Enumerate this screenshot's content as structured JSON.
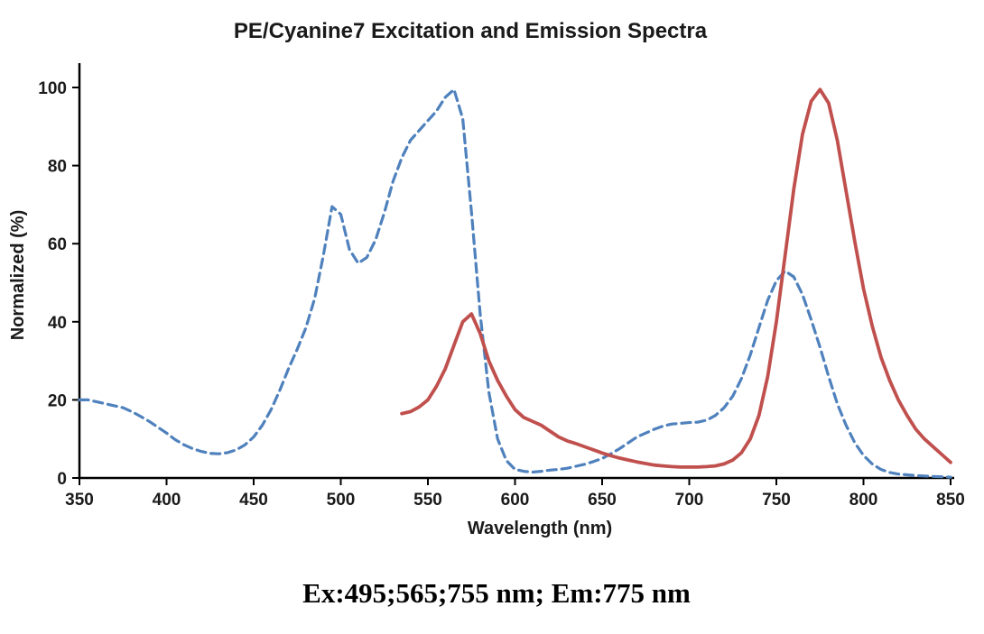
{
  "chart_data": {
    "type": "line",
    "title": "PE/Cyanine7 Excitation and Emission Spectra",
    "xlabel": "Wavelength (nm)",
    "ylabel": "Normalized (%)",
    "annotation": "Ex:495;565;755 nm; Em:775 nm",
    "xlim": [
      350,
      850
    ],
    "ylim": [
      0,
      100
    ],
    "x_ticks": [
      350,
      400,
      450,
      500,
      550,
      600,
      650,
      700,
      750,
      800,
      850
    ],
    "y_ticks": [
      0,
      20,
      40,
      60,
      80,
      100
    ],
    "grid": false,
    "legend": "none",
    "axis_color": "#000000",
    "series": [
      {
        "name": "Excitation",
        "style": "dashed",
        "color": "#4f81bd",
        "x": [
          350,
          355,
          360,
          365,
          370,
          375,
          380,
          385,
          390,
          395,
          400,
          405,
          410,
          415,
          420,
          425,
          430,
          435,
          440,
          445,
          450,
          455,
          460,
          465,
          470,
          475,
          480,
          485,
          490,
          495,
          500,
          505,
          510,
          515,
          520,
          525,
          530,
          535,
          540,
          545,
          550,
          555,
          560,
          565,
          570,
          575,
          580,
          585,
          590,
          595,
          600,
          605,
          610,
          615,
          620,
          625,
          630,
          635,
          640,
          645,
          650,
          655,
          660,
          665,
          670,
          675,
          680,
          685,
          690,
          695,
          700,
          705,
          710,
          715,
          720,
          725,
          730,
          735,
          740,
          745,
          750,
          755,
          760,
          765,
          770,
          775,
          780,
          785,
          790,
          795,
          800,
          805,
          810,
          815,
          820,
          825,
          830,
          835,
          840,
          845,
          850
        ],
        "y": [
          20,
          20,
          19.5,
          19,
          18.5,
          18,
          17,
          15.8,
          14.5,
          13,
          11.5,
          9.8,
          8.5,
          7.5,
          6.8,
          6.3,
          6.2,
          6.5,
          7.2,
          8.5,
          10.5,
          13.5,
          17.5,
          22.5,
          28,
          33,
          38.5,
          46,
          57,
          69.5,
          67.5,
          58.5,
          55,
          56.5,
          61,
          68,
          76,
          82,
          86.5,
          89,
          91.5,
          94,
          97.5,
          99.5,
          92,
          68,
          42,
          22,
          10,
          4.5,
          2.2,
          1.7,
          1.5,
          1.7,
          2,
          2.2,
          2.5,
          3,
          3.5,
          4.2,
          5,
          6.2,
          7.5,
          9,
          10.5,
          11.5,
          12.5,
          13.3,
          13.8,
          14,
          14.2,
          14.3,
          14.8,
          16,
          18,
          21,
          25.5,
          31.5,
          38.5,
          45.5,
          50.5,
          53,
          51.5,
          47,
          40.5,
          33.5,
          26,
          19,
          13.5,
          9,
          5.8,
          3.6,
          2.2,
          1.4,
          1,
          0.8,
          0.6,
          0.5,
          0.4,
          0.3,
          0.2
        ]
      },
      {
        "name": "Emission",
        "style": "solid",
        "color": "#c0504d",
        "x": [
          535,
          540,
          545,
          550,
          555,
          560,
          565,
          570,
          575,
          580,
          585,
          590,
          595,
          600,
          605,
          610,
          615,
          620,
          625,
          630,
          635,
          640,
          645,
          650,
          655,
          660,
          665,
          670,
          675,
          680,
          685,
          690,
          695,
          700,
          705,
          710,
          715,
          720,
          725,
          730,
          735,
          740,
          745,
          750,
          755,
          760,
          765,
          770,
          775,
          780,
          785,
          790,
          795,
          800,
          805,
          810,
          815,
          820,
          825,
          830,
          835,
          840,
          845,
          850
        ],
        "y": [
          16.5,
          17,
          18.2,
          20,
          23.5,
          28,
          34,
          40,
          42,
          37,
          30,
          25,
          21,
          17.5,
          15.5,
          14.5,
          13.5,
          12,
          10.5,
          9.5,
          8.8,
          8,
          7.2,
          6.4,
          5.7,
          5.1,
          4.6,
          4.1,
          3.7,
          3.3,
          3.1,
          2.9,
          2.8,
          2.8,
          2.8,
          2.9,
          3.1,
          3.6,
          4.6,
          6.5,
          10,
          16,
          26,
          40,
          57,
          74,
          88,
          96.5,
          99.5,
          96,
          86.5,
          73.5,
          60.5,
          48.5,
          39,
          31,
          25,
          20,
          16,
          12.5,
          10,
          8,
          6,
          4
        ]
      }
    ]
  }
}
